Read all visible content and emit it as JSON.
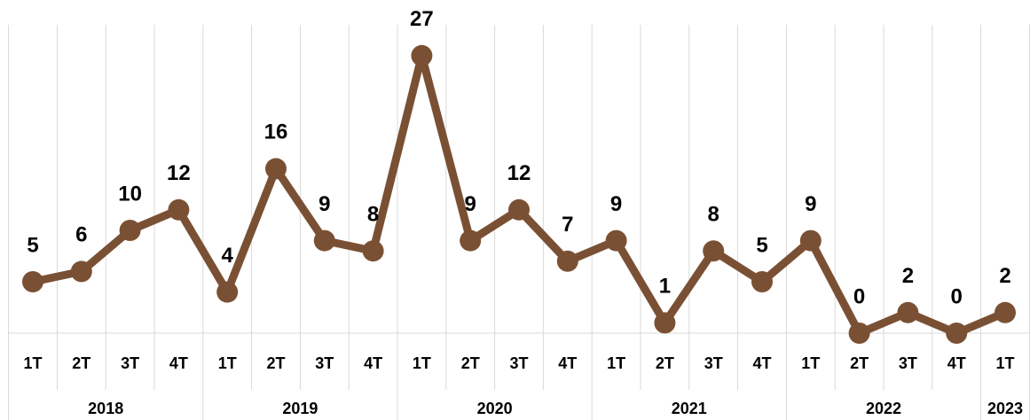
{
  "chart_data": {
    "type": "line",
    "groups": [
      {
        "label": "2018",
        "categories": [
          "1T",
          "2T",
          "3T",
          "4T"
        ]
      },
      {
        "label": "2019",
        "categories": [
          "1T",
          "2T",
          "3T",
          "4T"
        ]
      },
      {
        "label": "2020",
        "categories": [
          "1T",
          "2T",
          "3T",
          "4T"
        ]
      },
      {
        "label": "2021",
        "categories": [
          "1T",
          "2T",
          "3T",
          "4T"
        ]
      },
      {
        "label": "2022",
        "categories": [
          "1T",
          "2T",
          "3T",
          "4T"
        ]
      },
      {
        "label": "2023",
        "categories": [
          "1T"
        ]
      }
    ],
    "values": [
      5,
      6,
      10,
      12,
      4,
      16,
      9,
      8,
      27,
      9,
      12,
      7,
      9,
      1,
      8,
      5,
      9,
      0,
      2,
      0,
      2
    ],
    "color": "#7a5034",
    "ylim": [
      0,
      30
    ],
    "grid": true
  }
}
